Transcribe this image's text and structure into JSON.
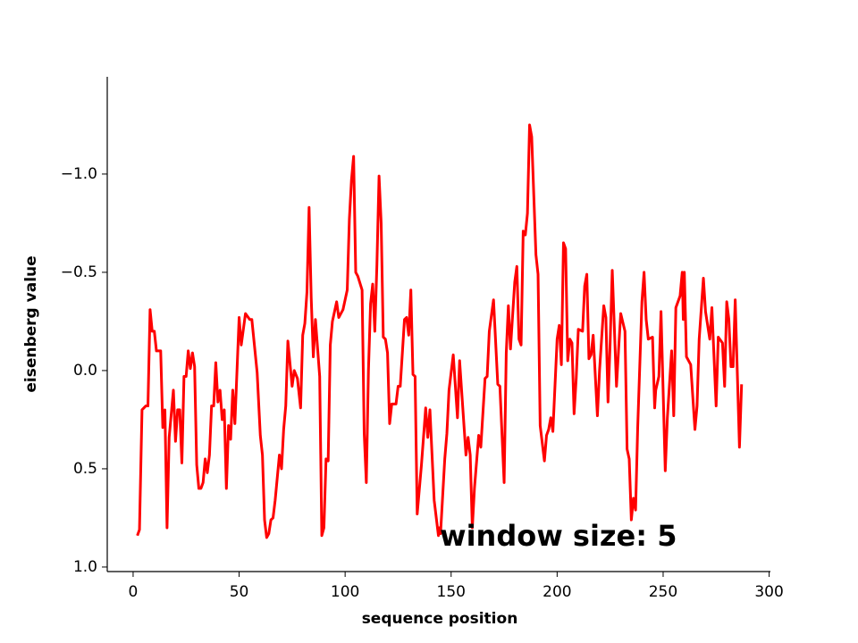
{
  "chart_data": {
    "type": "line",
    "xlabel": "sequence position",
    "ylabel": "eisenberg value",
    "annotation": "window size: 5",
    "color": "#ff0000",
    "xlim": [
      -12.2,
      300.6
    ],
    "xticks": [
      0,
      50,
      100,
      150,
      200,
      250,
      300
    ],
    "ylim": [
      -1.495,
      1.023
    ],
    "y_inverted": true,
    "yticks": [
      {
        "value": -1.0,
        "label": "−1.0"
      },
      {
        "value": -0.5,
        "label": "−0.5"
      },
      {
        "value": 0.0,
        "label": "0.0"
      },
      {
        "value": 0.5,
        "label": "0.5"
      },
      {
        "value": 1.0,
        "label": "1.0"
      }
    ],
    "x": [
      2,
      3,
      4.2,
      6,
      7,
      8,
      9,
      10,
      11,
      13,
      14,
      15,
      16,
      17,
      19,
      20,
      21,
      22,
      23,
      24,
      25,
      26,
      27,
      28,
      29,
      30,
      31,
      32,
      33,
      34,
      35,
      36,
      37,
      38,
      39,
      40,
      41,
      42,
      43,
      44,
      45,
      46,
      47,
      48,
      50,
      51,
      53,
      55,
      56,
      58.5,
      60,
      61,
      62,
      63,
      64,
      65,
      66,
      67,
      69,
      70,
      71,
      72,
      73,
      75,
      76,
      77.5,
      79,
      80,
      81,
      82,
      83,
      84,
      85,
      86,
      88,
      89,
      90,
      91,
      92,
      93,
      94,
      96,
      97,
      99,
      100,
      101,
      102,
      103,
      104,
      105,
      106,
      108,
      109,
      110,
      111,
      112,
      113,
      114,
      115,
      116,
      117,
      118,
      119,
      120,
      121,
      122,
      124,
      125,
      126,
      128,
      129,
      130,
      131,
      132,
      133,
      134,
      136,
      138,
      139,
      140,
      142,
      144,
      144.5,
      145,
      147,
      148,
      149,
      151,
      153,
      154,
      155,
      157,
      158,
      159,
      160,
      161,
      163,
      164,
      166,
      167,
      168,
      170,
      172,
      173,
      175,
      176,
      177,
      178,
      180,
      181,
      182,
      183,
      184,
      185,
      186,
      187,
      188,
      190,
      191,
      192,
      194,
      195,
      196,
      197,
      198,
      200,
      201,
      202,
      203,
      204,
      205,
      206,
      207,
      208,
      209,
      210,
      212,
      213,
      214,
      215,
      216,
      217,
      219,
      220,
      222,
      223,
      224,
      225,
      226,
      228,
      229,
      230,
      232,
      233,
      234,
      235,
      236,
      237,
      238,
      240,
      241,
      242,
      243,
      245,
      246,
      246.5,
      248,
      249,
      251,
      252,
      254,
      255,
      256,
      258,
      259,
      259.5,
      260,
      261,
      263,
      265,
      266,
      267,
      269,
      270,
      272,
      273,
      275,
      276,
      278,
      279,
      280,
      281,
      282,
      283,
      284,
      286,
      287
    ],
    "values": [
      0.84,
      0.81,
      0.2,
      0.18,
      0.18,
      -0.31,
      -0.2,
      -0.2,
      -0.1,
      -0.1,
      0.29,
      0.2,
      0.8,
      0.34,
      0.1,
      0.36,
      0.2,
      0.2,
      0.47,
      0.03,
      0.03,
      -0.1,
      -0.01,
      -0.09,
      -0.02,
      0.48,
      0.6,
      0.6,
      0.57,
      0.45,
      0.52,
      0.43,
      0.18,
      0.18,
      -0.04,
      0.16,
      0.1,
      0.25,
      0.2,
      0.6,
      0.28,
      0.35,
      0.1,
      0.27,
      -0.27,
      -0.13,
      -0.29,
      -0.26,
      -0.26,
      0.01,
      0.33,
      0.43,
      0.76,
      0.85,
      0.83,
      0.76,
      0.75,
      0.66,
      0.43,
      0.5,
      0.3,
      0.18,
      -0.15,
      0.08,
      0,
      0.04,
      0.19,
      -0.18,
      -0.24,
      -0.4,
      -0.83,
      -0.37,
      -0.07,
      -0.26,
      0.03,
      0.84,
      0.8,
      0.45,
      0.46,
      -0.13,
      -0.25,
      -0.35,
      -0.27,
      -0.31,
      -0.36,
      -0.41,
      -0.77,
      -0.97,
      -1.09,
      -0.5,
      -0.48,
      -0.41,
      0.32,
      0.57,
      0,
      -0.34,
      -0.44,
      -0.2,
      -0.54,
      -0.99,
      -0.75,
      -0.17,
      -0.16,
      -0.09,
      0.27,
      0.17,
      0.17,
      0.08,
      0.08,
      -0.26,
      -0.27,
      -0.18,
      -0.41,
      0.02,
      0.03,
      0.73,
      0.48,
      0.19,
      0.34,
      0.2,
      0.66,
      0.84,
      0.8,
      0.83,
      0.45,
      0.32,
      0.1,
      -0.08,
      0.24,
      -0.05,
      0.11,
      0.43,
      0.34,
      0.43,
      0.8,
      0.6,
      0.33,
      0.39,
      0.04,
      0.03,
      -0.2,
      -0.36,
      0.07,
      0.08,
      0.57,
      -0.09,
      -0.33,
      -0.11,
      -0.45,
      -0.53,
      -0.16,
      -0.13,
      -0.71,
      -0.69,
      -0.8,
      -1.25,
      -1.19,
      -0.59,
      -0.49,
      0.28,
      0.46,
      0.33,
      0.3,
      0.24,
      0.31,
      -0.16,
      -0.23,
      -0.03,
      -0.65,
      -0.62,
      -0.05,
      -0.16,
      -0.14,
      0.22,
      0.04,
      -0.21,
      -0.2,
      -0.43,
      -0.49,
      -0.06,
      -0.08,
      -0.18,
      0.23,
      0,
      -0.33,
      -0.27,
      0.16,
      -0.14,
      -0.51,
      0.08,
      -0.11,
      -0.29,
      -0.2,
      0.4,
      0.45,
      0.76,
      0.65,
      0.71,
      0.29,
      -0.35,
      -0.5,
      -0.26,
      -0.16,
      -0.17,
      0.19,
      0.1,
      0.03,
      -0.3,
      0.51,
      0.24,
      -0.1,
      0.23,
      -0.32,
      -0.38,
      -0.5,
      -0.26,
      -0.5,
      -0.07,
      -0.03,
      0.3,
      0.18,
      -0.16,
      -0.47,
      -0.3,
      -0.16,
      -0.32,
      0.18,
      -0.17,
      -0.14,
      0.08,
      -0.35,
      -0.26,
      -0.02,
      -0.02,
      -0.36,
      0.39,
      0.07
    ]
  }
}
